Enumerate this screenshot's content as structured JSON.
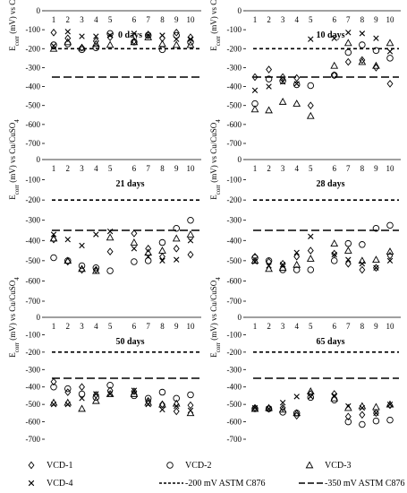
{
  "chart_data": {
    "type": "scatter",
    "ylabel_main": "E",
    "ylabel_sub": "corr",
    "ylabel_rest": " (mV) vs Cu/CuSO",
    "ylabel_sub4": "4",
    "ylim": [
      0,
      -700
    ],
    "yticks": [
      0,
      -100,
      -200,
      -300,
      -400,
      -500,
      -600,
      -700
    ],
    "xticks": [
      1,
      2,
      3,
      4,
      5,
      6,
      7,
      8,
      9,
      10
    ],
    "reference_lines": [
      {
        "name": "-200 mV ASTM C876",
        "value": -200,
        "style": "short-dash"
      },
      {
        "name": "-350 mV ASTM C876",
        "value": -350,
        "style": "long-dash"
      }
    ],
    "legend": {
      "placement": "bottom",
      "entries": [
        {
          "label": "VCD-1",
          "marker": "diamond"
        },
        {
          "label": "VCD-2",
          "marker": "circle"
        },
        {
          "label": "VCD-3",
          "marker": "triangle"
        },
        {
          "label": "VCD-4",
          "marker": "cross"
        },
        {
          "label": "-200 mV ASTM C876",
          "marker": "short-dash"
        },
        {
          "label": "-350 mV ASTM C876",
          "marker": "long-dash"
        }
      ]
    },
    "panels": [
      {
        "title": "0 days",
        "series": [
          {
            "name": "VCD-1",
            "x": [
              1,
              2,
              3,
              4,
              5,
              6,
              7,
              8,
              9,
              10
            ],
            "y": [
              -115,
              -145,
              -195,
              -160,
              -140,
              -160,
              -125,
              -145,
              -115,
              -140
            ]
          },
          {
            "name": "VCD-2",
            "x": [
              1,
              2,
              3,
              4,
              5,
              6,
              7,
              8,
              9,
              10
            ],
            "y": [
              -180,
              -175,
              -205,
              -195,
              -120,
              -165,
              -130,
              -205,
              -130,
              -165
            ]
          },
          {
            "name": "VCD-3",
            "x": [
              1,
              2,
              3,
              4,
              5,
              6,
              7,
              8,
              9,
              10
            ],
            "y": [
              -200,
              -165,
              -195,
              -175,
              -180,
              -165,
              -140,
              -175,
              -180,
              -180
            ]
          },
          {
            "name": "VCD-4",
            "x": [
              1,
              2,
              3,
              4,
              5,
              6,
              7,
              8,
              9,
              10
            ],
            "y": [
              -185,
              -110,
              -135,
              -135,
              -130,
              -120,
              -130,
              -130,
              -150,
              -150
            ]
          }
        ]
      },
      {
        "title": "10 days",
        "series": [
          {
            "name": "VCD-1",
            "x": [
              1,
              2,
              3,
              4,
              5,
              6,
              7,
              8,
              9,
              10
            ],
            "y": [
              -350,
              -310,
              -350,
              -355,
              -500,
              -340,
              -270,
              -260,
              -300,
              -385
            ]
          },
          {
            "name": "VCD-2",
            "x": [
              1,
              2,
              3,
              4,
              5,
              6,
              7,
              8,
              9,
              10
            ],
            "y": [
              -490,
              -360,
              -370,
              -390,
              -395,
              -340,
              -220,
              -180,
              -210,
              -250
            ]
          },
          {
            "name": "VCD-3",
            "x": [
              1,
              2,
              3,
              4,
              5,
              6,
              7,
              8,
              9,
              10
            ],
            "y": [
              -520,
              -525,
              -480,
              -490,
              -555,
              -290,
              -170,
              -270,
              -290,
              -170
            ]
          },
          {
            "name": "VCD-4",
            "x": [
              1,
              2,
              3,
              4,
              5,
              6,
              7,
              8,
              9,
              10
            ],
            "y": [
              -420,
              -400,
              -375,
              -385,
              -150,
              -145,
              -115,
              -120,
              -145,
              -215
            ]
          }
        ]
      },
      {
        "title": "21 days",
        "series": [
          {
            "name": "VCD-1",
            "x": [
              1,
              2,
              3,
              4,
              5,
              6,
              7,
              8,
              9,
              10
            ],
            "y": [
              -395,
              -505,
              -545,
              -545,
              -455,
              -365,
              -440,
              -480,
              -440,
              -470
            ]
          },
          {
            "name": "VCD-2",
            "x": [
              1,
              2,
              3,
              4,
              5,
              6,
              7,
              8,
              9,
              10
            ],
            "y": [
              -485,
              -500,
              -525,
              -535,
              -550,
              -505,
              -500,
              -410,
              -340,
              -300
            ]
          },
          {
            "name": "VCD-3",
            "x": [
              1,
              2,
              3,
              4,
              5,
              6,
              7,
              8,
              9,
              10
            ],
            "y": [
              -390,
              -500,
              -540,
              -550,
              -385,
              -410,
              -460,
              -450,
              -390,
              -370
            ]
          },
          {
            "name": "VCD-4",
            "x": [
              1,
              2,
              3,
              4,
              5,
              6,
              7,
              8,
              9,
              10
            ],
            "y": [
              -370,
              -395,
              -425,
              -370,
              -355,
              -440,
              -480,
              -500,
              -495,
              -400
            ]
          }
        ]
      },
      {
        "title": "28 days",
        "series": [
          {
            "name": "VCD-1",
            "x": [
              1,
              2,
              3,
              4,
              5,
              6,
              7,
              8,
              9,
              10
            ],
            "y": [
              -480,
              -505,
              -515,
              -480,
              -450,
              -465,
              -515,
              -545,
              -535,
              -475
            ]
          },
          {
            "name": "VCD-2",
            "x": [
              1,
              2,
              3,
              4,
              5,
              6,
              7,
              8,
              9,
              10
            ],
            "y": [
              -485,
              -500,
              -545,
              -545,
              -545,
              -500,
              -415,
              -420,
              -340,
              -325
            ]
          },
          {
            "name": "VCD-3",
            "x": [
              1,
              2,
              3,
              4,
              5,
              6,
              7,
              8,
              9,
              10
            ],
            "y": [
              -500,
              -540,
              -535,
              -520,
              -490,
              -415,
              -450,
              -500,
              -495,
              -455
            ]
          },
          {
            "name": "VCD-4",
            "x": [
              1,
              2,
              3,
              4,
              5,
              6,
              7,
              8,
              9,
              10
            ],
            "y": [
              -505,
              -525,
              -520,
              -460,
              -380,
              -470,
              -495,
              -515,
              -535,
              -500
            ]
          }
        ]
      },
      {
        "title": "50 days",
        "series": [
          {
            "name": "VCD-1",
            "x": [
              1,
              2,
              3,
              4,
              5,
              6,
              7,
              8,
              9,
              10
            ],
            "y": [
              -370,
              -430,
              -400,
              -445,
              -420,
              -425,
              -480,
              -500,
              -540,
              -505
            ]
          },
          {
            "name": "VCD-2",
            "x": [
              1,
              2,
              3,
              4,
              5,
              6,
              7,
              8,
              9,
              10
            ],
            "y": [
              -400,
              -410,
              -440,
              -460,
              -390,
              -450,
              -465,
              -430,
              -465,
              -445
            ]
          },
          {
            "name": "VCD-3",
            "x": [
              1,
              2,
              3,
              4,
              5,
              6,
              7,
              8,
              9,
              10
            ],
            "y": [
              -490,
              -490,
              -525,
              -480,
              -440,
              -440,
              -490,
              -500,
              -495,
              -550
            ]
          },
          {
            "name": "VCD-4",
            "x": [
              1,
              2,
              3,
              4,
              5,
              6,
              7,
              8,
              9,
              10
            ],
            "y": [
              -500,
              -500,
              -465,
              -440,
              -440,
              -420,
              -500,
              -530,
              -510,
              -535
            ]
          }
        ]
      },
      {
        "title": "65 days",
        "series": [
          {
            "name": "VCD-1",
            "x": [
              1,
              2,
              3,
              4,
              5,
              6,
              7,
              8,
              9,
              10
            ],
            "y": [
              -520,
              -525,
              -520,
              -565,
              -440,
              -440,
              -570,
              -560,
              -550,
              -505
            ]
          },
          {
            "name": "VCD-2",
            "x": [
              1,
              2,
              3,
              4,
              5,
              6,
              7,
              8,
              9,
              10
            ],
            "y": [
              -525,
              -525,
              -545,
              -550,
              -460,
              -475,
              -600,
              -615,
              -595,
              -590
            ]
          },
          {
            "name": "VCD-3",
            "x": [
              1,
              2,
              3,
              4,
              5,
              6,
              7,
              8,
              9,
              10
            ],
            "y": [
              -525,
              -520,
              -530,
              -550,
              -425,
              -465,
              -520,
              -510,
              -515,
              -500
            ]
          },
          {
            "name": "VCD-4",
            "x": [
              1,
              2,
              3,
              4,
              5,
              6,
              7,
              8,
              9,
              10
            ],
            "y": [
              -520,
              -525,
              -490,
              -455,
              -455,
              -450,
              -510,
              -520,
              -550,
              -500
            ]
          }
        ]
      }
    ]
  }
}
